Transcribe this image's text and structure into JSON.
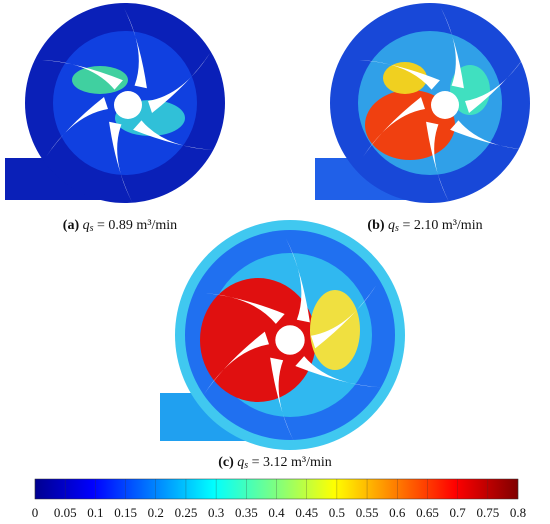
{
  "panels": [
    {
      "label": "(a)",
      "symbol": "q",
      "subscript": "s",
      "value": "= 0.89 m³/min"
    },
    {
      "label": "(b)",
      "symbol": "q",
      "subscript": "s",
      "value": "= 2.10 m³/min"
    },
    {
      "label": "(c)",
      "symbol": "q",
      "subscript": "s",
      "value": "= 3.12 m³/min"
    }
  ],
  "colorbar": {
    "ticks": [
      0,
      0.05,
      0.1,
      0.15,
      0.2,
      0.25,
      0.3,
      0.35,
      0.4,
      0.45,
      0.5,
      0.55,
      0.6,
      0.65,
      0.7,
      0.75,
      0.8
    ]
  }
}
